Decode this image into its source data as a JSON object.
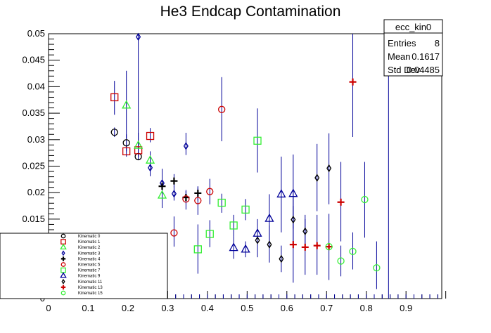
{
  "chart_data": {
    "type": "scatter",
    "title": "He3 Endcap Contamination",
    "xlabel": "",
    "ylabel": "",
    "xlim": [
      0,
      0.99
    ],
    "ylim": [
      0,
      0.05
    ],
    "x_ticks": [
      "0",
      "0.1",
      "0.2",
      "0.3",
      "0.4",
      "0.5",
      "0.6",
      "0.7",
      "0.8",
      "0.9"
    ],
    "y_ticks": [
      "0",
      "0.005",
      "0.01",
      "0.015",
      "0.02",
      "0.025",
      "0.03",
      "0.035",
      "0.04",
      "0.045",
      "0.05"
    ],
    "grid": false,
    "legend_position": "bottom-left",
    "series": [
      {
        "name": "Kinematic 0",
        "marker": "circle",
        "color": "#000000",
        "points": [
          {
            "x": 0.166,
            "y": 0.0314,
            "lo": 0.0305,
            "hi": 0.0323
          },
          {
            "x": 0.196,
            "y": 0.0294,
            "lo": 0.0278,
            "hi": 0.031
          },
          {
            "x": 0.226,
            "y": 0.0268,
            "lo": 0.0262,
            "hi": 0.0274
          }
        ]
      },
      {
        "name": "Kinematic 1",
        "marker": "square",
        "color": "#cc0000",
        "points": [
          {
            "x": 0.166,
            "y": 0.038,
            "lo": 0.0347,
            "hi": 0.0411
          },
          {
            "x": 0.196,
            "y": 0.0278,
            "lo": 0.0268,
            "hi": 0.0288
          },
          {
            "x": 0.226,
            "y": 0.028,
            "lo": 0.0268,
            "hi": 0.0292
          },
          {
            "x": 0.256,
            "y": 0.0307,
            "lo": 0.0295,
            "hi": 0.0322
          }
        ]
      },
      {
        "name": "Kinematic 2",
        "marker": "triangle",
        "color": "#33ee33",
        "points": [
          {
            "x": 0.196,
            "y": 0.0365,
            "lo": 0.0302,
            "hi": 0.043
          },
          {
            "x": 0.226,
            "y": 0.0289,
            "lo": 0.0268,
            "hi": 0.0313
          },
          {
            "x": 0.256,
            "y": 0.0261,
            "lo": 0.0245,
            "hi": 0.0278
          },
          {
            "x": 0.286,
            "y": 0.0195,
            "lo": 0.0171,
            "hi": 0.022
          }
        ]
      },
      {
        "name": "Kinematic 3",
        "marker": "diamond",
        "color": "#000099",
        "points": [
          {
            "x": 0.226,
            "y": 0.0494,
            "lo": 0.0282,
            "hi": 0.05
          },
          {
            "x": 0.256,
            "y": 0.0247,
            "lo": 0.0231,
            "hi": 0.0262
          },
          {
            "x": 0.286,
            "y": 0.0218,
            "lo": 0.0187,
            "hi": 0.0245
          },
          {
            "x": 0.316,
            "y": 0.0198,
            "lo": 0.0185,
            "hi": 0.0213
          },
          {
            "x": 0.346,
            "y": 0.0288,
            "lo": 0.0271,
            "hi": 0.0313
          }
        ]
      },
      {
        "name": "Kinematic 4",
        "marker": "plus",
        "color": "#000000",
        "points": [
          {
            "x": 0.286,
            "y": 0.0212,
            "lo": 0.0202,
            "hi": 0.0222
          },
          {
            "x": 0.316,
            "y": 0.0222,
            "lo": 0.021,
            "hi": 0.0235
          },
          {
            "x": 0.346,
            "y": 0.0191,
            "lo": 0.018,
            "hi": 0.0203
          },
          {
            "x": 0.376,
            "y": 0.0199,
            "lo": 0.0185,
            "hi": 0.0212
          }
        ]
      },
      {
        "name": "Kinematic 5",
        "marker": "circle",
        "color": "#cc0000",
        "points": [
          {
            "x": 0.316,
            "y": 0.0124,
            "lo": 0.0098,
            "hi": 0.0155
          },
          {
            "x": 0.346,
            "y": 0.0188,
            "lo": 0.0168,
            "hi": 0.0205
          },
          {
            "x": 0.376,
            "y": 0.0185,
            "lo": 0.0158,
            "hi": 0.021
          },
          {
            "x": 0.406,
            "y": 0.0202,
            "lo": 0.0178,
            "hi": 0.0226
          },
          {
            "x": 0.436,
            "y": 0.0357,
            "lo": 0.0297,
            "hi": 0.0418
          }
        ]
      },
      {
        "name": "Kinematic 7",
        "marker": "square",
        "color": "#33ee33",
        "points": [
          {
            "x": 0.376,
            "y": 0.0093,
            "lo": 0.0047,
            "hi": 0.014
          },
          {
            "x": 0.406,
            "y": 0.0122,
            "lo": 0.0097,
            "hi": 0.0148
          },
          {
            "x": 0.436,
            "y": 0.0181,
            "lo": 0.0162,
            "hi": 0.0198
          },
          {
            "x": 0.466,
            "y": 0.0138,
            "lo": 0.0118,
            "hi": 0.0158
          },
          {
            "x": 0.496,
            "y": 0.0168,
            "lo": 0.0148,
            "hi": 0.0188
          },
          {
            "x": 0.526,
            "y": 0.0298,
            "lo": 0.0238,
            "hi": 0.0359
          }
        ]
      },
      {
        "name": "Kinematic 9",
        "marker": "triangle",
        "color": "#000099",
        "points": [
          {
            "x": 0.466,
            "y": 0.0096,
            "lo": 0.0075,
            "hi": 0.0118
          },
          {
            "x": 0.496,
            "y": 0.0093,
            "lo": 0.0078,
            "hi": 0.0108
          },
          {
            "x": 0.526,
            "y": 0.0123,
            "lo": 0.0098,
            "hi": 0.015
          },
          {
            "x": 0.556,
            "y": 0.0151,
            "lo": 0.0105,
            "hi": 0.0197
          },
          {
            "x": 0.586,
            "y": 0.0197,
            "lo": 0.0125,
            "hi": 0.0268
          },
          {
            "x": 0.616,
            "y": 0.0198,
            "lo": 0.0132,
            "hi": 0.0272
          },
          {
            "x": 0.856,
            "y": 0.0487,
            "lo": 0,
            "hi": 0.05
          }
        ]
      },
      {
        "name": "Kinematic 11",
        "marker": "diamond",
        "color": "#000000",
        "points": [
          {
            "x": 0.526,
            "y": 0.011,
            "lo": 0.0078,
            "hi": 0.0142
          },
          {
            "x": 0.556,
            "y": 0.0102,
            "lo": 0.0068,
            "hi": 0.0138
          },
          {
            "x": 0.586,
            "y": 0.0075,
            "lo": 0.005,
            "hi": 0.01
          },
          {
            "x": 0.616,
            "y": 0.0149,
            "lo": 0.0095,
            "hi": 0.0205
          },
          {
            "x": 0.646,
            "y": 0.0127,
            "lo": 0.0095,
            "hi": 0.0158
          },
          {
            "x": 0.676,
            "y": 0.0228,
            "lo": 0.0165,
            "hi": 0.0292
          },
          {
            "x": 0.706,
            "y": 0.0246,
            "lo": 0.0178,
            "hi": 0.0312
          }
        ]
      },
      {
        "name": "Kinematic 13",
        "marker": "plus",
        "color": "#cc0000",
        "points": [
          {
            "x": 0.616,
            "y": 0.0102,
            "lo": 0.003,
            "hi": 0.0175
          },
          {
            "x": 0.646,
            "y": 0.0097,
            "lo": 0.0045,
            "hi": 0.015
          },
          {
            "x": 0.676,
            "y": 0.01,
            "lo": 0.0045,
            "hi": 0.0158
          },
          {
            "x": 0.706,
            "y": 0.0098,
            "lo": 0.0035,
            "hi": 0.016
          },
          {
            "x": 0.736,
            "y": 0.0182,
            "lo": 0.0108,
            "hi": 0.0258
          },
          {
            "x": 0.766,
            "y": 0.0409,
            "lo": 0.0305,
            "hi": 0.05
          }
        ]
      },
      {
        "name": "Kinematic 15",
        "marker": "circle",
        "color": "#33ee33",
        "points": [
          {
            "x": 0.706,
            "y": 0.0098,
            "lo": 0.0092,
            "hi": 0.0105
          },
          {
            "x": 0.736,
            "y": 0.0071,
            "lo": 0.0042,
            "hi": 0.01
          },
          {
            "x": 0.766,
            "y": 0.0089,
            "lo": 0.0055,
            "hi": 0.0125
          },
          {
            "x": 0.796,
            "y": 0.0187,
            "lo": 0.0115,
            "hi": 0.0258
          },
          {
            "x": 0.826,
            "y": 0.0058,
            "lo": 0.0018,
            "hi": 0.0108
          },
          {
            "x": 0.856,
            "y": 0.0494,
            "lo": 0.049,
            "hi": 0.05
          }
        ]
      }
    ]
  },
  "stats_box": {
    "title": "ecc_kin0",
    "rows": [
      {
        "label": "Entries",
        "value": "8"
      },
      {
        "label": "Mean",
        "value": "0.1617"
      },
      {
        "label": "Std Dev",
        "value": "0.04485"
      }
    ]
  }
}
